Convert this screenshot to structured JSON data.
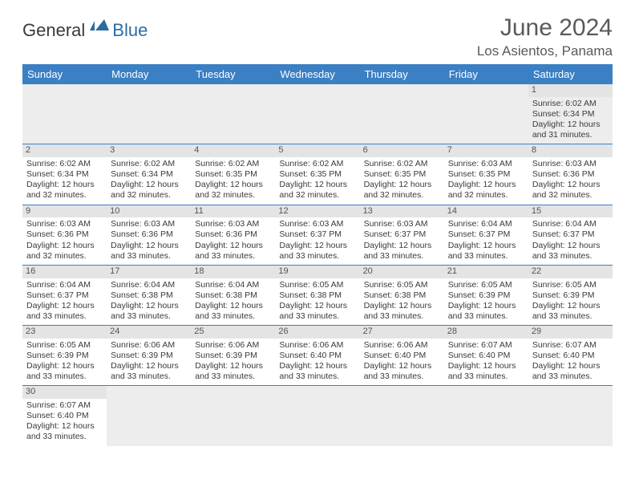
{
  "logo": {
    "text1": "General",
    "text2": "Blue"
  },
  "title": "June 2024",
  "location": "Los Asientos, Panama",
  "colors": {
    "header_bg": "#3b7fc4",
    "header_fg": "#ffffff",
    "daynum_bg": "#e4e4e4",
    "row_border": "#3b7fc4",
    "logo_accent": "#2b6ca3",
    "text": "#3a3a3a"
  },
  "weekdays": [
    "Sunday",
    "Monday",
    "Tuesday",
    "Wednesday",
    "Thursday",
    "Friday",
    "Saturday"
  ],
  "weeks": [
    [
      null,
      null,
      null,
      null,
      null,
      null,
      {
        "d": "1",
        "sr": "6:02 AM",
        "ss": "6:34 PM",
        "dl": "12 hours and 31 minutes."
      }
    ],
    [
      {
        "d": "2",
        "sr": "6:02 AM",
        "ss": "6:34 PM",
        "dl": "12 hours and 32 minutes."
      },
      {
        "d": "3",
        "sr": "6:02 AM",
        "ss": "6:34 PM",
        "dl": "12 hours and 32 minutes."
      },
      {
        "d": "4",
        "sr": "6:02 AM",
        "ss": "6:35 PM",
        "dl": "12 hours and 32 minutes."
      },
      {
        "d": "5",
        "sr": "6:02 AM",
        "ss": "6:35 PM",
        "dl": "12 hours and 32 minutes."
      },
      {
        "d": "6",
        "sr": "6:02 AM",
        "ss": "6:35 PM",
        "dl": "12 hours and 32 minutes."
      },
      {
        "d": "7",
        "sr": "6:03 AM",
        "ss": "6:35 PM",
        "dl": "12 hours and 32 minutes."
      },
      {
        "d": "8",
        "sr": "6:03 AM",
        "ss": "6:36 PM",
        "dl": "12 hours and 32 minutes."
      }
    ],
    [
      {
        "d": "9",
        "sr": "6:03 AM",
        "ss": "6:36 PM",
        "dl": "12 hours and 32 minutes."
      },
      {
        "d": "10",
        "sr": "6:03 AM",
        "ss": "6:36 PM",
        "dl": "12 hours and 33 minutes."
      },
      {
        "d": "11",
        "sr": "6:03 AM",
        "ss": "6:36 PM",
        "dl": "12 hours and 33 minutes."
      },
      {
        "d": "12",
        "sr": "6:03 AM",
        "ss": "6:37 PM",
        "dl": "12 hours and 33 minutes."
      },
      {
        "d": "13",
        "sr": "6:03 AM",
        "ss": "6:37 PM",
        "dl": "12 hours and 33 minutes."
      },
      {
        "d": "14",
        "sr": "6:04 AM",
        "ss": "6:37 PM",
        "dl": "12 hours and 33 minutes."
      },
      {
        "d": "15",
        "sr": "6:04 AM",
        "ss": "6:37 PM",
        "dl": "12 hours and 33 minutes."
      }
    ],
    [
      {
        "d": "16",
        "sr": "6:04 AM",
        "ss": "6:37 PM",
        "dl": "12 hours and 33 minutes."
      },
      {
        "d": "17",
        "sr": "6:04 AM",
        "ss": "6:38 PM",
        "dl": "12 hours and 33 minutes."
      },
      {
        "d": "18",
        "sr": "6:04 AM",
        "ss": "6:38 PM",
        "dl": "12 hours and 33 minutes."
      },
      {
        "d": "19",
        "sr": "6:05 AM",
        "ss": "6:38 PM",
        "dl": "12 hours and 33 minutes."
      },
      {
        "d": "20",
        "sr": "6:05 AM",
        "ss": "6:38 PM",
        "dl": "12 hours and 33 minutes."
      },
      {
        "d": "21",
        "sr": "6:05 AM",
        "ss": "6:39 PM",
        "dl": "12 hours and 33 minutes."
      },
      {
        "d": "22",
        "sr": "6:05 AM",
        "ss": "6:39 PM",
        "dl": "12 hours and 33 minutes."
      }
    ],
    [
      {
        "d": "23",
        "sr": "6:05 AM",
        "ss": "6:39 PM",
        "dl": "12 hours and 33 minutes."
      },
      {
        "d": "24",
        "sr": "6:06 AM",
        "ss": "6:39 PM",
        "dl": "12 hours and 33 minutes."
      },
      {
        "d": "25",
        "sr": "6:06 AM",
        "ss": "6:39 PM",
        "dl": "12 hours and 33 minutes."
      },
      {
        "d": "26",
        "sr": "6:06 AM",
        "ss": "6:40 PM",
        "dl": "12 hours and 33 minutes."
      },
      {
        "d": "27",
        "sr": "6:06 AM",
        "ss": "6:40 PM",
        "dl": "12 hours and 33 minutes."
      },
      {
        "d": "28",
        "sr": "6:07 AM",
        "ss": "6:40 PM",
        "dl": "12 hours and 33 minutes."
      },
      {
        "d": "29",
        "sr": "6:07 AM",
        "ss": "6:40 PM",
        "dl": "12 hours and 33 minutes."
      }
    ],
    [
      {
        "d": "30",
        "sr": "6:07 AM",
        "ss": "6:40 PM",
        "dl": "12 hours and 33 minutes."
      },
      null,
      null,
      null,
      null,
      null,
      null
    ]
  ],
  "labels": {
    "sunrise": "Sunrise:",
    "sunset": "Sunset:",
    "daylight": "Daylight:"
  }
}
